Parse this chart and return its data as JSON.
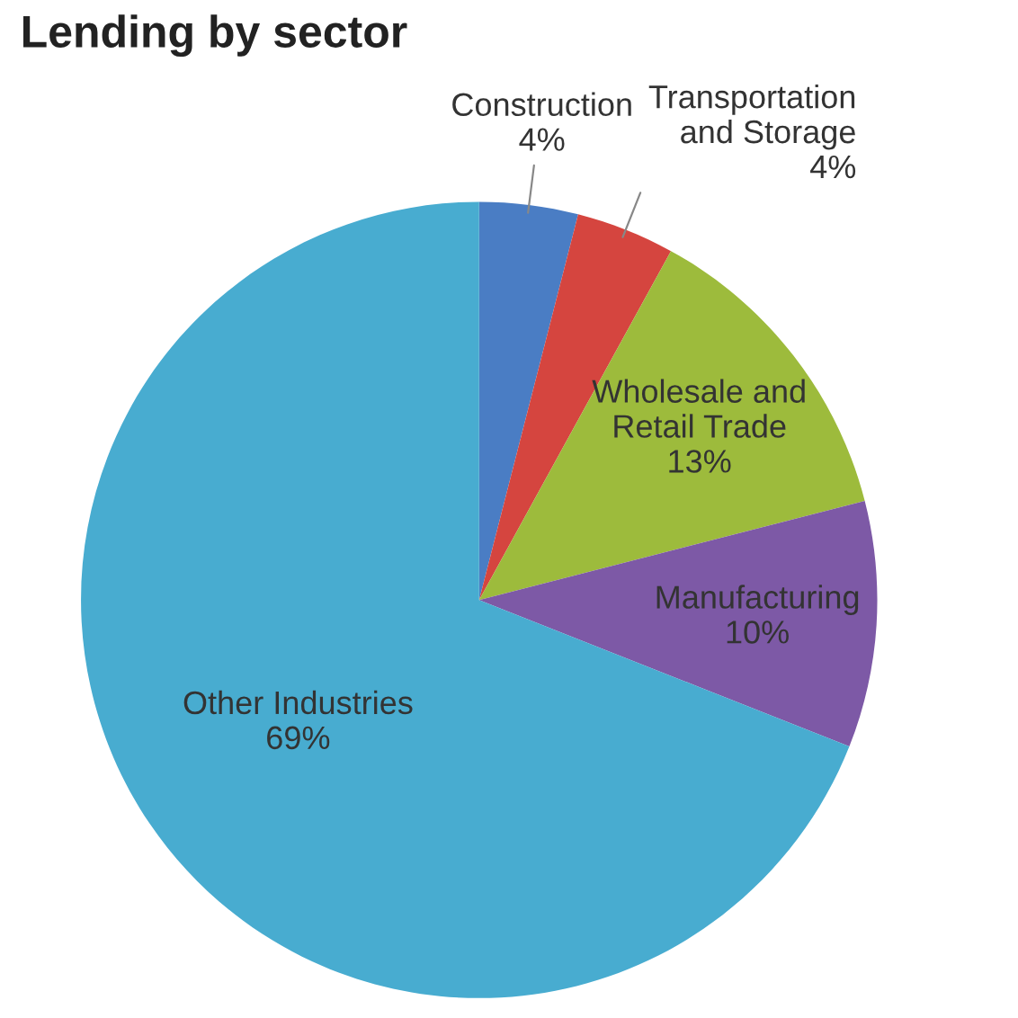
{
  "chart_data": {
    "type": "pie",
    "title": "Lending by sector",
    "categories": [
      "Construction",
      "Transportation\nand Storage",
      "Wholesale and\nRetail Trade",
      "Manufacturing",
      "Other Industries"
    ],
    "values": [
      4,
      4,
      13,
      10,
      69
    ],
    "colors": [
      "#4a7dc4",
      "#d5453f",
      "#9dbb3c",
      "#7d59a6",
      "#48acd0"
    ],
    "value_labels": [
      "4%",
      "4%",
      "13%",
      "10%",
      "69%"
    ]
  }
}
